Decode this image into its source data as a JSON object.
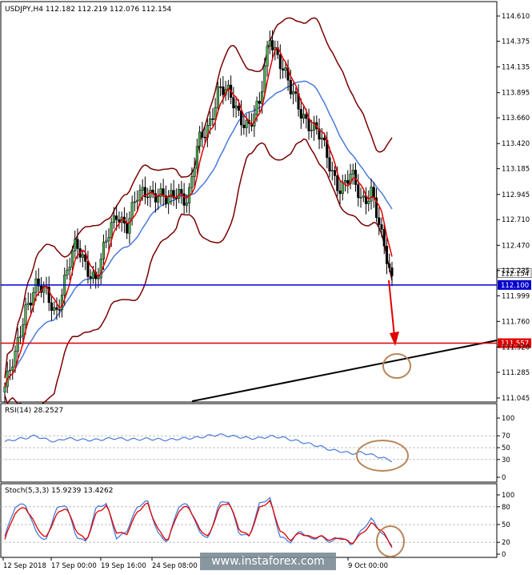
{
  "chart_data": {
    "type": "candlestick",
    "instrument_header": "USDJPY,H4  112.182 112.219 112.076 112.154",
    "y_ticks": [
      "114.610",
      "114.375",
      "114.135",
      "113.895",
      "113.660",
      "113.420",
      "113.185",
      "112.945",
      "112.710",
      "112.470",
      "112.235",
      "111.999",
      "111.760",
      "111.520",
      "111.285",
      "111.045"
    ],
    "ylim": [
      111.045,
      114.61
    ],
    "x_ticks": [
      "12 Sep 2018",
      "17 Sep 00:00",
      "19 Sep 16:00",
      "24 Sep 08:00",
      "9 Oct 00:00"
    ],
    "close_path": [
      111.15,
      111.4,
      111.9,
      112.1,
      112.0,
      111.85,
      112.2,
      112.45,
      112.3,
      112.15,
      112.5,
      112.8,
      112.65,
      112.9,
      113.0,
      112.95,
      112.85,
      113.0,
      112.9,
      113.4,
      113.6,
      113.95,
      113.85,
      113.7,
      113.6,
      113.75,
      114.45,
      114.2,
      113.9,
      113.75,
      113.6,
      113.45,
      113.2,
      113.0,
      113.1,
      112.9,
      113.0,
      112.5,
      112.15
    ],
    "current_price_label": "112.154",
    "levels": [
      {
        "label": "112.100",
        "value": 112.1,
        "color": "#0000cc"
      },
      {
        "label": "111.557",
        "value": 111.557,
        "color": "#e00000"
      }
    ],
    "rsi": {
      "title": "RSI(14) 28.2527",
      "y_ticks": [
        "100",
        "70",
        "50",
        "30",
        "0"
      ],
      "ylim": [
        0,
        100
      ],
      "values": [
        60,
        64,
        66,
        70,
        64,
        60,
        66,
        64,
        63,
        63,
        65,
        66,
        64,
        64,
        65,
        64,
        63,
        65,
        66,
        67,
        70,
        72,
        70,
        68,
        66,
        66,
        69,
        68,
        64,
        60,
        56,
        52,
        46,
        44,
        40,
        42,
        38,
        33,
        28
      ]
    },
    "stoch": {
      "title": "Stoch(5,3,3) 15.9239 13.4262",
      "y_ticks": [
        "100",
        "80",
        "50",
        "20",
        "0"
      ],
      "ylim": [
        0,
        100
      ],
      "main": [
        30,
        80,
        85,
        40,
        20,
        75,
        85,
        30,
        20,
        80,
        85,
        25,
        40,
        80,
        90,
        35,
        20,
        80,
        85,
        40,
        25,
        85,
        90,
        35,
        30,
        85,
        95,
        30,
        20,
        40,
        25,
        30,
        20,
        30,
        15,
        40,
        60,
        35,
        16
      ],
      "signal": [
        25,
        70,
        80,
        50,
        25,
        65,
        80,
        40,
        22,
        70,
        82,
        35,
        35,
        72,
        86,
        42,
        22,
        72,
        82,
        45,
        28,
        78,
        88,
        42,
        30,
        78,
        90,
        40,
        24,
        36,
        28,
        30,
        24,
        28,
        18,
        34,
        52,
        40,
        13
      ]
    }
  },
  "watermark": "www.instaforex.com"
}
